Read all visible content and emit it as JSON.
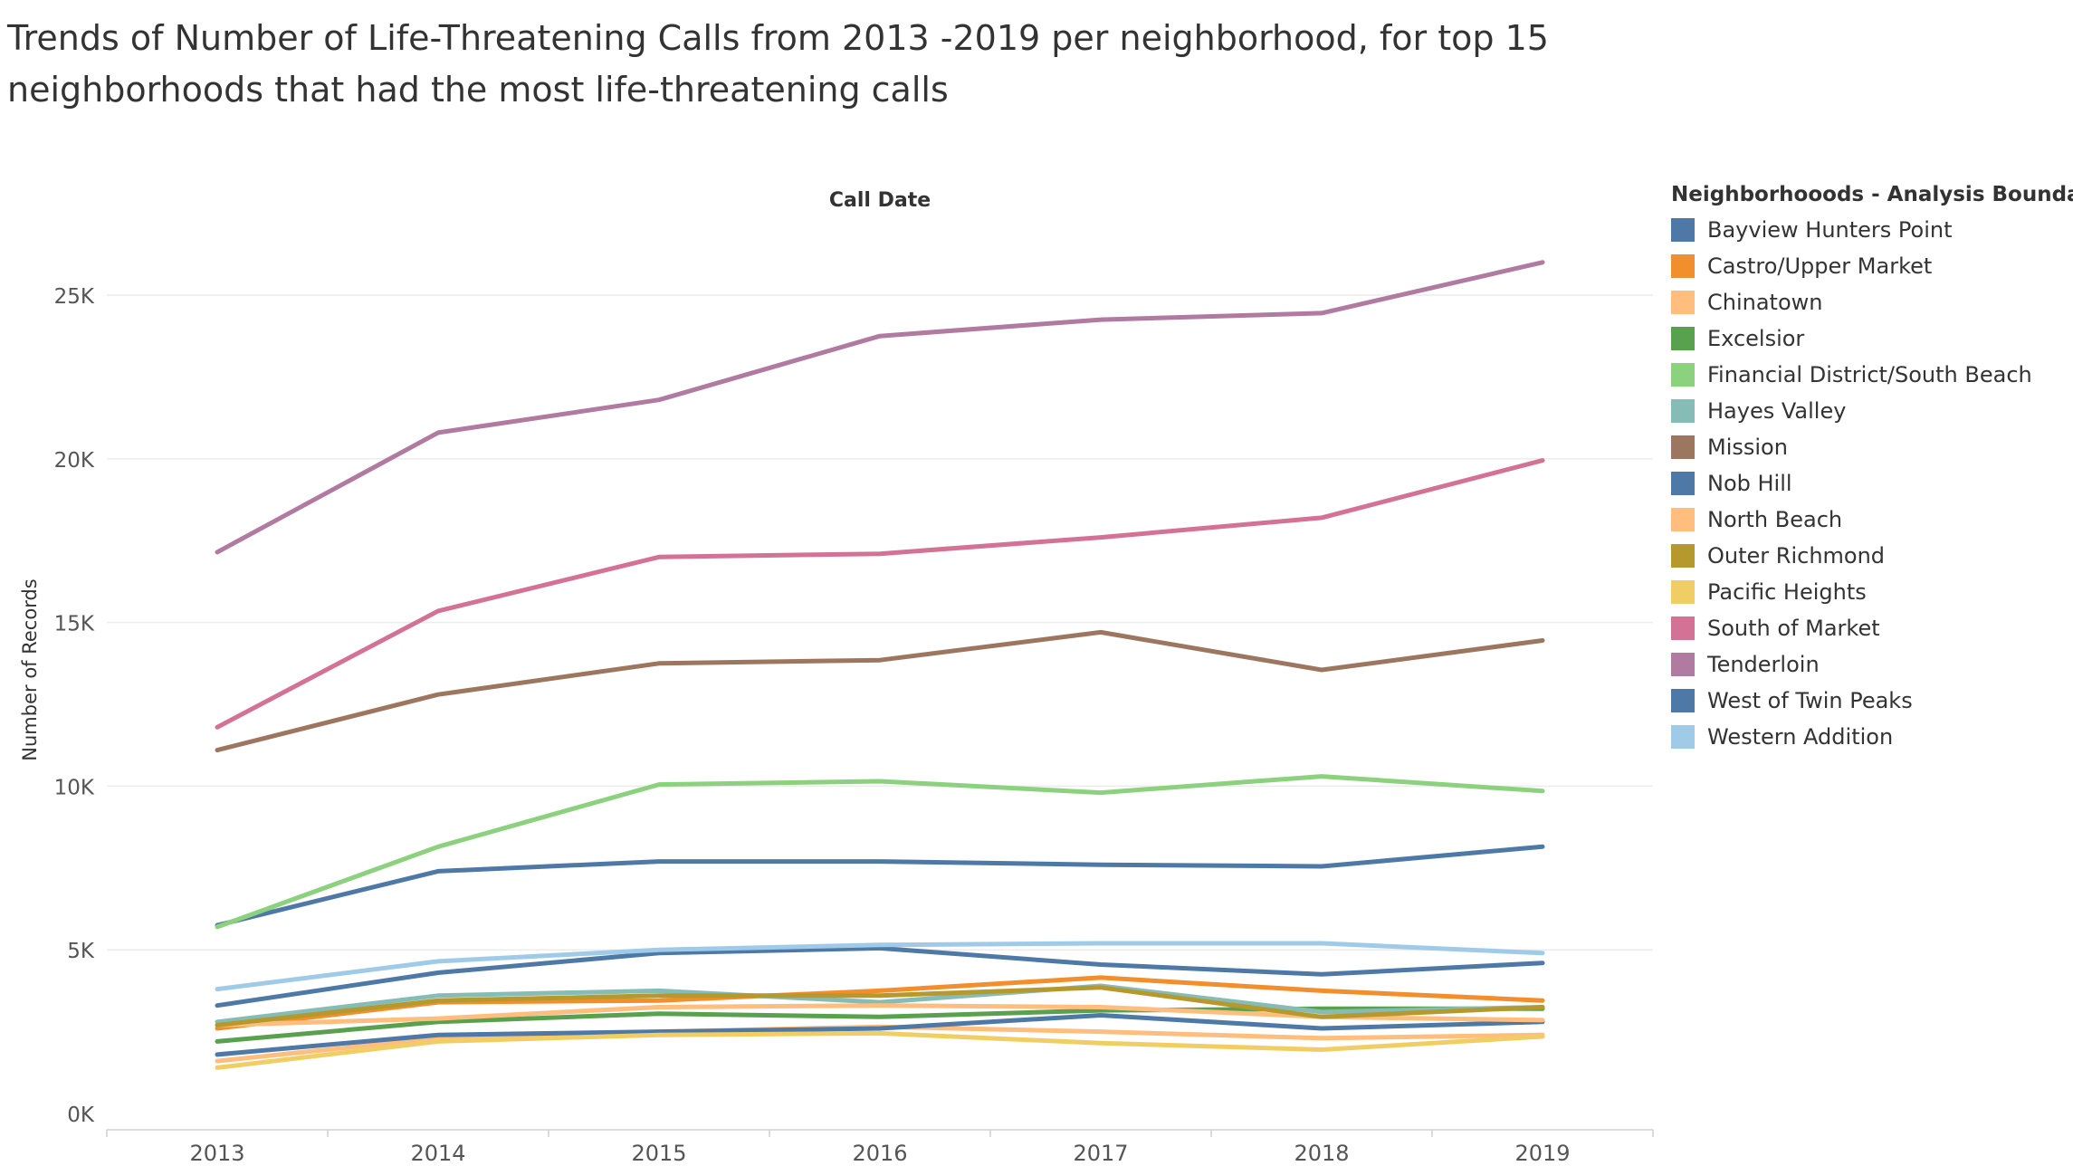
{
  "title_line1": "Trends of Number of  Life-Threatening Calls from 2013 -2019 per neighborhood, for top 15",
  "title_line2": "neighborhoods that had the most life-threatening calls",
  "chart_data": {
    "type": "line",
    "title": "Trends of Number of  Life-Threatening Calls from 2013 -2019 per neighborhood, for top 15 neighborhoods that had the most life-threatening calls",
    "xlabel": "Call Date",
    "ylabel": "Number of Records",
    "x": [
      "2013",
      "2014",
      "2015",
      "2016",
      "2017",
      "2018",
      "2019"
    ],
    "ylim": [
      0,
      27000
    ],
    "yticks": [
      0,
      5000,
      10000,
      15000,
      20000,
      25000
    ],
    "ytick_labels": [
      "0K",
      "5K",
      "10K",
      "15K",
      "20K",
      "25K"
    ],
    "grid": true,
    "legend_title": "Neighborhooods - Analysis Boundaries",
    "legend_position": "right",
    "series": [
      {
        "name": "Bayview Hunters Point",
        "color": "#4e79a7",
        "values": [
          5750,
          7400,
          7700,
          7700,
          7600,
          7550,
          8150
        ]
      },
      {
        "name": "Castro/Upper Market",
        "color": "#f28e2b",
        "values": [
          2600,
          3400,
          3450,
          3750,
          4150,
          3750,
          3450
        ]
      },
      {
        "name": "Chinatown",
        "color": "#ffbe7d",
        "values": [
          1600,
          2300,
          2500,
          2650,
          2500,
          2300,
          2400
        ]
      },
      {
        "name": "Excelsior",
        "color": "#59a14f",
        "values": [
          2200,
          2800,
          3050,
          2950,
          3150,
          3200,
          3200
        ]
      },
      {
        "name": "Financial District/South Beach",
        "color": "#8cd17d",
        "values": [
          5700,
          8150,
          10050,
          10150,
          9800,
          10300,
          9850
        ]
      },
      {
        "name": "Hayes Valley",
        "color": "#86bcb6",
        "values": [
          2800,
          3600,
          3750,
          3400,
          3900,
          3100,
          3250
        ]
      },
      {
        "name": "Mission",
        "color": "#9d7660",
        "values": [
          11100,
          12800,
          13750,
          13850,
          14700,
          13550,
          14450
        ]
      },
      {
        "name": "Nob Hill",
        "color": "#4e79a7",
        "values": [
          1800,
          2400,
          2500,
          2600,
          3000,
          2600,
          2800
        ]
      },
      {
        "name": "North Beach",
        "color": "#ffbe7d",
        "values": [
          2700,
          2900,
          3250,
          3300,
          3250,
          2950,
          2850
        ]
      },
      {
        "name": "Outer Richmond",
        "color": "#b6992d",
        "values": [
          2700,
          3450,
          3600,
          3600,
          3850,
          2950,
          3250
        ]
      },
      {
        "name": "Pacific Heights",
        "color": "#f1ce63",
        "values": [
          1400,
          2200,
          2400,
          2450,
          2150,
          1950,
          2350
        ]
      },
      {
        "name": "South of Market",
        "color": "#d37295",
        "values": [
          11800,
          15350,
          17000,
          17100,
          17600,
          18200,
          19950
        ]
      },
      {
        "name": "Tenderloin",
        "color": "#b07aa1",
        "values": [
          17150,
          20800,
          21800,
          23750,
          24250,
          24450,
          26000
        ]
      },
      {
        "name": "West of Twin Peaks",
        "color": "#4e79a7",
        "values": [
          3300,
          4300,
          4900,
          5050,
          4550,
          4250,
          4600
        ]
      },
      {
        "name": "Western Addition",
        "color": "#a0cbe8",
        "values": [
          3800,
          4650,
          5000,
          5150,
          5200,
          5200,
          4900
        ]
      }
    ]
  }
}
